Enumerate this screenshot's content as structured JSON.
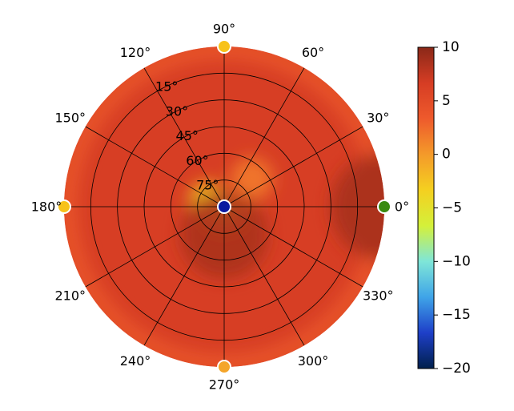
{
  "chart_data": {
    "type": "heatmap",
    "projection": "polar",
    "angular_ticks": [
      "0°",
      "30°",
      "60°",
      "90°",
      "120°",
      "150°",
      "180°",
      "210°",
      "240°",
      "270°",
      "300°",
      "330°"
    ],
    "angular_tick_values": [
      0,
      30,
      60,
      90,
      120,
      150,
      180,
      210,
      240,
      270,
      300,
      330
    ],
    "radial_ticks": [
      "15°",
      "30°",
      "45°",
      "60°",
      "75°"
    ],
    "radial_tick_values": [
      15,
      30,
      45,
      60,
      75
    ],
    "rlim": [
      0,
      90
    ],
    "grid": true,
    "colorbar": {
      "range": [
        -20,
        10
      ],
      "ticks": [
        10,
        5,
        0,
        -5,
        -10,
        -15,
        -20
      ],
      "tick_labels": [
        "10",
        "5",
        "0",
        "−5",
        "−10",
        "−15",
        "−20"
      ],
      "colormap": [
        "#00204c",
        "#1e3fc8",
        "#3fa4e8",
        "#7fe6d8",
        "#d4f03a",
        "#f4d020",
        "#f49a2a",
        "#ee5a2c",
        "#d63d24",
        "#8a2818"
      ]
    },
    "hotspots": [
      {
        "azimuth": 0,
        "elevation": 0,
        "value": 8.5,
        "spread_deg": 30
      },
      {
        "azimuth": 160,
        "elevation": 80,
        "value": -3.0,
        "spread_deg": 10
      },
      {
        "azimuth": 45,
        "elevation": 68,
        "value": 2.0,
        "spread_deg": 12
      },
      {
        "azimuth": 210,
        "elevation": 85,
        "value": 2.0,
        "spread_deg": 10
      },
      {
        "azimuth": 250,
        "elevation": 85,
        "value": 2.0,
        "spread_deg": 10
      },
      {
        "azimuth": 320,
        "elevation": 85,
        "value": 2.0,
        "spread_deg": 10
      },
      {
        "azimuth": 0,
        "elevation": 90,
        "value": -7.0,
        "spread_deg": 4
      }
    ],
    "background_value": 6.5,
    "markers": [
      {
        "azimuth": 0,
        "value": -4,
        "color": "#3a8a10"
      },
      {
        "azimuth": 90,
        "value": 2,
        "color": "#f7c21a"
      },
      {
        "azimuth": 180,
        "value": 2,
        "color": "#f7c21a"
      },
      {
        "azimuth": 270,
        "value": 3,
        "color": "#f4a52a"
      },
      {
        "azimuth": 0,
        "center": true,
        "value": -20,
        "color": "#0a1aa0"
      }
    ]
  }
}
